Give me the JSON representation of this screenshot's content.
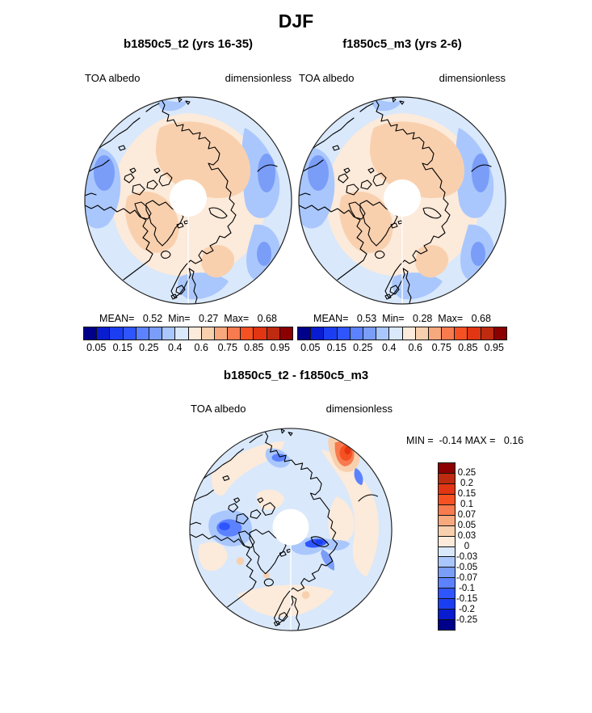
{
  "title": "DJF",
  "panels": [
    {
      "subtitle": "b1850c5_t2 (yrs 16-35)",
      "var_label": "TOA albedo",
      "units_label": "dimensionless",
      "stats_line": "MEAN=   0.52  Min=   0.27  Max=   0.68"
    },
    {
      "subtitle": "f1850c5_m3 (yrs 2-6)",
      "var_label": "TOA albedo",
      "units_label": "dimensionless",
      "stats_line": "MEAN=   0.53  Min=   0.28  Max=   0.68"
    }
  ],
  "diff": {
    "title": "b1850c5_t2 - f1850c5_m3",
    "var_label": "TOA albedo",
    "units_label": "dimensionless",
    "minmax_line": "MIN =  -0.14 MAX =   0.16"
  },
  "colorbar": {
    "palette": [
      "#00008B",
      "#0A1CD0",
      "#1C3EF2",
      "#2F55FF",
      "#5C82FF",
      "#7A9DF8",
      "#A9C7FD",
      "#D9E8FB",
      "#FCEADA",
      "#F9D0AE",
      "#F7A87D",
      "#F77B4E",
      "#F55122",
      "#E23513",
      "#BF2B10",
      "#8B0000"
    ],
    "tick_labels": [
      "0.05",
      "0.15",
      "0.25",
      "0.4",
      "0.6",
      "0.75",
      "0.85",
      "0.95"
    ],
    "tick_positions": [
      1,
      3,
      5,
      7,
      9,
      11,
      13,
      15
    ]
  },
  "diff_colorbar": {
    "palette": [
      "#8B0000",
      "#BF2B10",
      "#E23513",
      "#F55122",
      "#F77B4E",
      "#F7A87D",
      "#F9D0AE",
      "#FCEADA",
      "#D9E8FB",
      "#A9C7FD",
      "#7A9DF8",
      "#5C82FF",
      "#2F55FF",
      "#1C3EF2",
      "#0A1CD0",
      "#00008B"
    ],
    "tick_labels": [
      "0.25",
      "0.2",
      "0.15",
      "0.1",
      "0.07",
      "0.05",
      "0.03",
      "0",
      "-0.03",
      "-0.05",
      "-0.07",
      "-0.1",
      "-0.15",
      "-0.2",
      "-0.25"
    ]
  },
  "map_colors": {
    "ocean_light_blue": "#D9E8FB",
    "medium_blue": "#A9C7FD",
    "cream": "#FCEADA",
    "peach": "#F9D0AE",
    "coastline": "#000000",
    "pole_hole": "#FFFFFF"
  },
  "chart_data": [
    {
      "type": "heatmap",
      "subtype": "polar-stereographic-contour-map",
      "title": "b1850c5_t2 (yrs 16-35)",
      "season": "DJF",
      "variable": "TOA albedo",
      "units": "dimensionless",
      "stats": {
        "mean": 0.52,
        "min": 0.27,
        "max": 0.68
      },
      "contour_levels": [
        0.05,
        0.1,
        0.15,
        0.2,
        0.25,
        0.3,
        0.4,
        0.5,
        0.6,
        0.7,
        0.75,
        0.8,
        0.85,
        0.9,
        0.95
      ],
      "labeled_levels": [
        0.05,
        0.15,
        0.25,
        0.4,
        0.6,
        0.75,
        0.85,
        0.95
      ],
      "palette": [
        "#00008B",
        "#0A1CD0",
        "#1C3EF2",
        "#2F55FF",
        "#5C82FF",
        "#7A9DF8",
        "#A9C7FD",
        "#D9E8FB",
        "#FCEADA",
        "#F9D0AE",
        "#F7A87D",
        "#F77B4E",
        "#F55122",
        "#E23513",
        "#BF2B10",
        "#8B0000"
      ],
      "legend_position": "bottom"
    },
    {
      "type": "heatmap",
      "subtype": "polar-stereographic-contour-map",
      "title": "f1850c5_m3 (yrs 2-6)",
      "season": "DJF",
      "variable": "TOA albedo",
      "units": "dimensionless",
      "stats": {
        "mean": 0.53,
        "min": 0.28,
        "max": 0.68
      },
      "contour_levels": [
        0.05,
        0.1,
        0.15,
        0.2,
        0.25,
        0.3,
        0.4,
        0.5,
        0.6,
        0.7,
        0.75,
        0.8,
        0.85,
        0.9,
        0.95
      ],
      "labeled_levels": [
        0.05,
        0.15,
        0.25,
        0.4,
        0.6,
        0.75,
        0.85,
        0.95
      ],
      "palette": [
        "#00008B",
        "#0A1CD0",
        "#1C3EF2",
        "#2F55FF",
        "#5C82FF",
        "#7A9DF8",
        "#A9C7FD",
        "#D9E8FB",
        "#FCEADA",
        "#F9D0AE",
        "#F7A87D",
        "#F77B4E",
        "#F55122",
        "#E23513",
        "#BF2B10",
        "#8B0000"
      ],
      "legend_position": "bottom"
    },
    {
      "type": "heatmap",
      "subtype": "polar-stereographic-contour-map",
      "title": "b1850c5_t2 - f1850c5_m3",
      "season": "DJF",
      "variable": "TOA albedo",
      "units": "dimensionless",
      "stats": {
        "min": -0.14,
        "max": 0.16
      },
      "contour_levels": [
        -0.25,
        -0.2,
        -0.15,
        -0.1,
        -0.07,
        -0.05,
        -0.03,
        0,
        0.03,
        0.05,
        0.07,
        0.1,
        0.15,
        0.2,
        0.25
      ],
      "labeled_levels": [
        -0.25,
        -0.2,
        -0.15,
        -0.1,
        -0.07,
        -0.05,
        -0.03,
        0,
        0.03,
        0.05,
        0.07,
        0.1,
        0.15,
        0.2,
        0.25
      ],
      "palette": [
        "#00008B",
        "#0A1CD0",
        "#1C3EF2",
        "#2F55FF",
        "#5C82FF",
        "#7A9DF8",
        "#A9C7FD",
        "#D9E8FB",
        "#FCEADA",
        "#F9D0AE",
        "#F7A87D",
        "#F77B4E",
        "#F55122",
        "#E23513",
        "#BF2B10",
        "#8B0000"
      ],
      "legend_position": "right"
    }
  ]
}
